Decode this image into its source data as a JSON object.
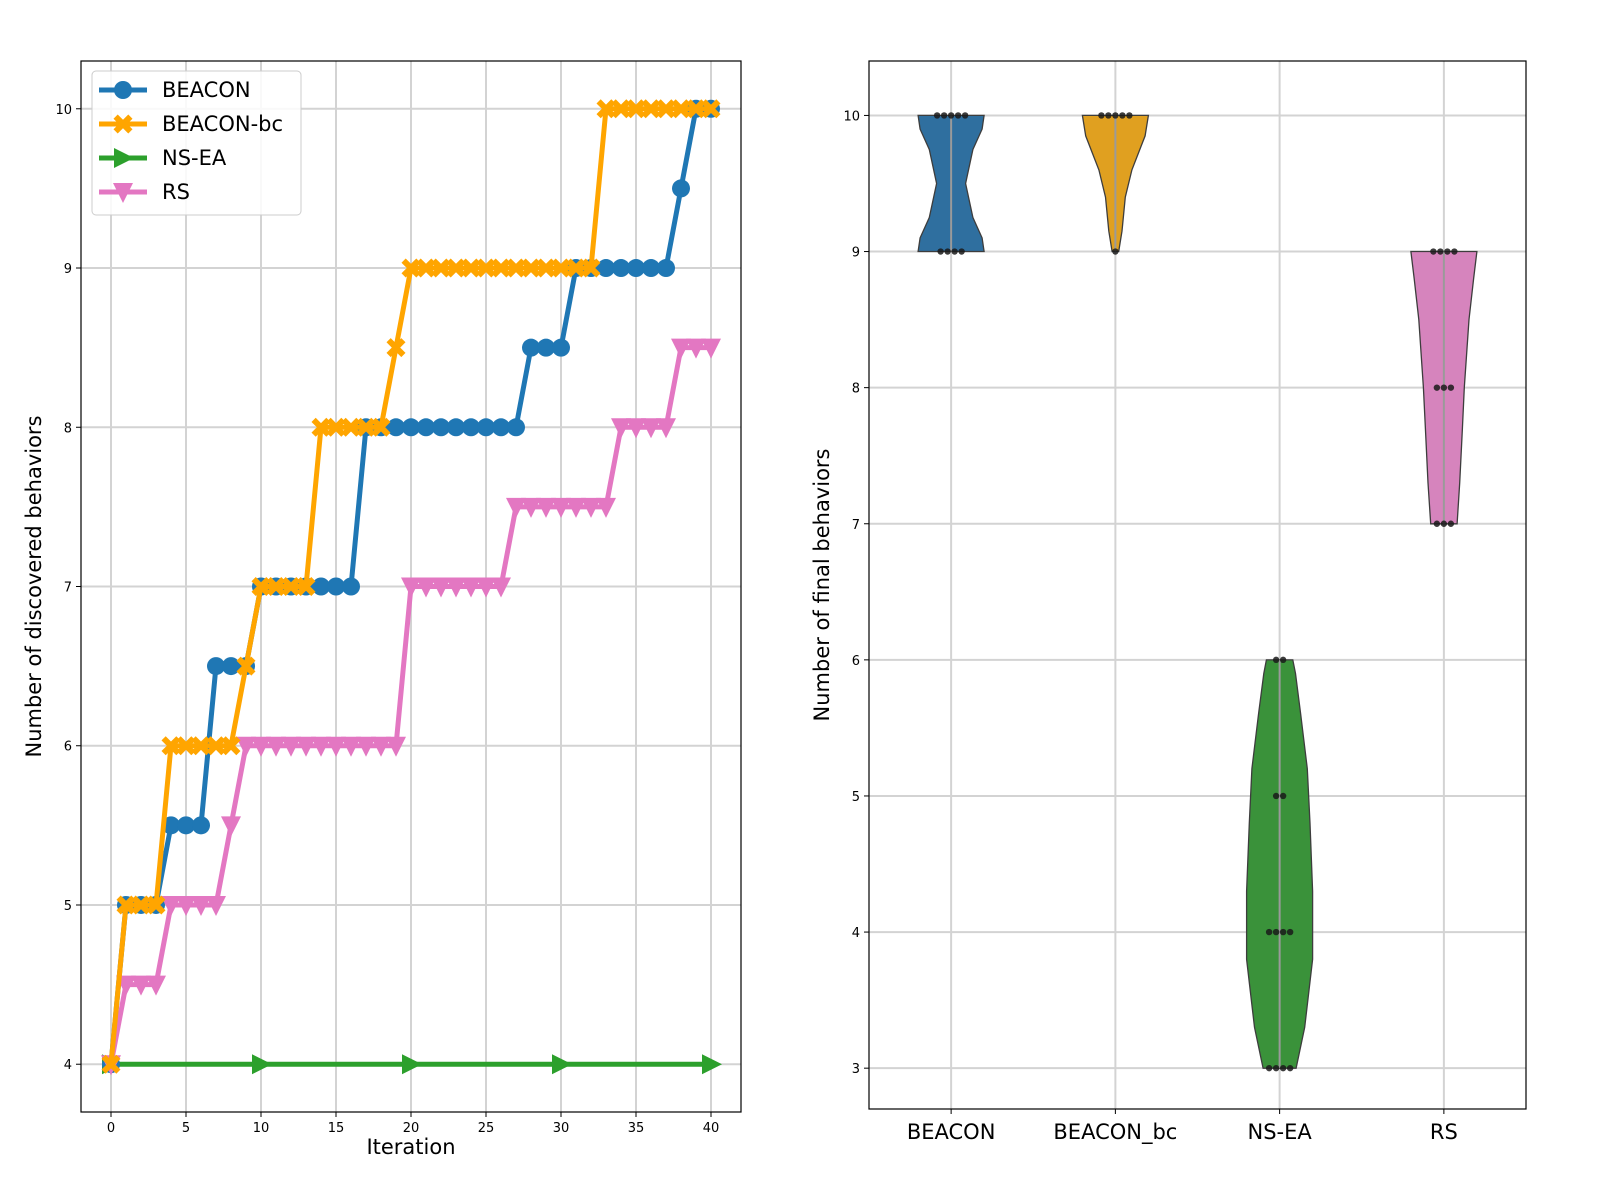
{
  "chart_data": [
    {
      "type": "line",
      "xlabel": "Iteration",
      "ylabel": "Number of discovered behaviors",
      "xlim": [
        -2,
        42
      ],
      "ylim": [
        3.7,
        10.3
      ],
      "xticks": [
        0,
        5,
        10,
        15,
        20,
        25,
        30,
        35,
        40
      ],
      "yticks": [
        4,
        5,
        6,
        7,
        8,
        9,
        10
      ],
      "grid": true,
      "legend_position": "top-left",
      "x": [
        0,
        1,
        2,
        3,
        4,
        5,
        6,
        7,
        8,
        9,
        10,
        11,
        12,
        13,
        14,
        15,
        16,
        17,
        18,
        19,
        20,
        21,
        22,
        23,
        24,
        25,
        26,
        27,
        28,
        29,
        30,
        31,
        32,
        33,
        34,
        35,
        36,
        37,
        38,
        39,
        40
      ],
      "series": [
        {
          "name": "BEACON",
          "color": "#1f77b4",
          "marker": "circle",
          "values": [
            4,
            5,
            5,
            5,
            5.5,
            5.5,
            5.5,
            6.5,
            6.5,
            6.5,
            7,
            7,
            7,
            7,
            7,
            7,
            7,
            8,
            8,
            8,
            8,
            8,
            8,
            8,
            8,
            8,
            8,
            8,
            8.5,
            8.5,
            8.5,
            9,
            9,
            9,
            9,
            9,
            9,
            9,
            9.5,
            10,
            10
          ]
        },
        {
          "name": "BEACON-bc",
          "color": "#ffa500",
          "marker": "x-filled",
          "values": [
            4,
            5,
            5,
            5,
            6,
            6,
            6,
            6,
            6,
            6.5,
            7,
            7,
            7,
            7,
            8,
            8,
            8,
            8,
            8,
            8.5,
            9,
            9,
            9,
            9,
            9,
            9,
            9,
            9,
            9,
            9,
            9,
            9,
            9,
            10,
            10,
            10,
            10,
            10,
            10,
            10,
            10
          ]
        },
        {
          "name": "NS-EA",
          "color": "#2ca02c",
          "marker": "triangle-right",
          "markevery": 10,
          "values": [
            4,
            4,
            4,
            4,
            4,
            4,
            4,
            4,
            4,
            4,
            4,
            4,
            4,
            4,
            4,
            4,
            4,
            4,
            4,
            4,
            4,
            4,
            4,
            4,
            4,
            4,
            4,
            4,
            4,
            4,
            4,
            4,
            4,
            4,
            4,
            4,
            4,
            4,
            4,
            4,
            4
          ]
        },
        {
          "name": "RS",
          "color": "#e377c2",
          "marker": "triangle-down",
          "values": [
            4,
            4.5,
            4.5,
            4.5,
            5,
            5,
            5,
            5,
            5.5,
            6,
            6,
            6,
            6,
            6,
            6,
            6,
            6,
            6,
            6,
            6,
            7,
            7,
            7,
            7,
            7,
            7,
            7,
            7.5,
            7.5,
            7.5,
            7.5,
            7.5,
            7.5,
            7.5,
            8,
            8,
            8,
            8,
            8.5,
            8.5,
            8.5
          ]
        }
      ]
    },
    {
      "type": "violin",
      "xlabel": "",
      "ylabel": "Number of final behaviors",
      "ylim": [
        2.7,
        10.4
      ],
      "yticks": [
        3,
        4,
        5,
        6,
        7,
        8,
        9,
        10
      ],
      "grid": true,
      "categories": [
        "BEACON",
        "BEACON_bc",
        "NS-EA",
        "RS"
      ],
      "series": [
        {
          "name": "BEACON",
          "color": "#2f6f9f",
          "points": [
            10,
            10,
            10,
            10,
            10,
            9,
            9,
            9,
            9
          ],
          "profile": [
            [
              9,
              0.5
            ],
            [
              9.1,
              0.47
            ],
            [
              9.25,
              0.33
            ],
            [
              9.5,
              0.22
            ],
            [
              9.75,
              0.33
            ],
            [
              9.9,
              0.47
            ],
            [
              10,
              0.5
            ]
          ]
        },
        {
          "name": "BEACON_bc",
          "color": "#e0a020",
          "points": [
            10,
            10,
            10,
            10,
            10,
            9
          ],
          "profile": [
            [
              9,
              0.05
            ],
            [
              9.15,
              0.1
            ],
            [
              9.4,
              0.15
            ],
            [
              9.6,
              0.25
            ],
            [
              9.85,
              0.45
            ],
            [
              10,
              0.5
            ]
          ]
        },
        {
          "name": "NS-EA",
          "color": "#3a923a",
          "points": [
            6,
            6,
            5,
            5,
            4,
            4,
            4,
            4,
            3,
            3,
            3,
            3
          ],
          "profile": [
            [
              3,
              0.25
            ],
            [
              3.3,
              0.38
            ],
            [
              3.8,
              0.5
            ],
            [
              4.3,
              0.5
            ],
            [
              4.8,
              0.46
            ],
            [
              5.2,
              0.42
            ],
            [
              5.6,
              0.32
            ],
            [
              5.9,
              0.24
            ],
            [
              6,
              0.2
            ]
          ]
        },
        {
          "name": "RS",
          "color": "#d684bd",
          "points": [
            9,
            9,
            9,
            9,
            8,
            8,
            8,
            7,
            7,
            7
          ],
          "profile": [
            [
              7,
              0.2
            ],
            [
              7.3,
              0.24
            ],
            [
              7.7,
              0.28
            ],
            [
              8,
              0.31
            ],
            [
              8.5,
              0.38
            ],
            [
              8.8,
              0.45
            ],
            [
              9,
              0.5
            ]
          ]
        }
      ]
    }
  ]
}
